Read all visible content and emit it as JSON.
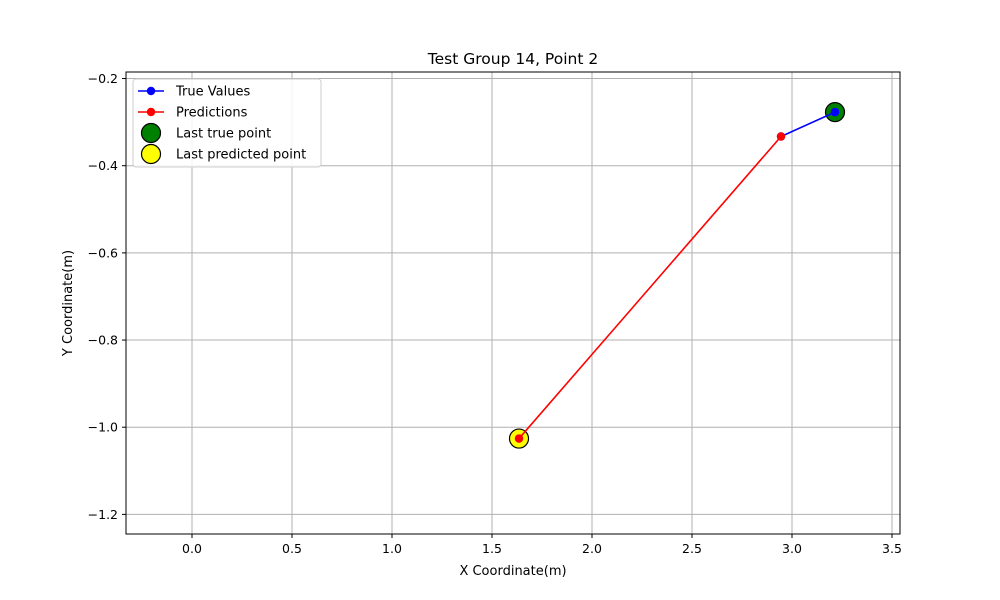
{
  "chart_data": {
    "type": "line",
    "title": "Test Group 14, Point 2",
    "xlabel": "X Coordinate(m)",
    "ylabel": "Y Coordinate(m)",
    "xlim": [
      -0.33,
      3.54
    ],
    "ylim": [
      -1.245,
      -0.185
    ],
    "xticks": [
      0.0,
      0.5,
      1.0,
      1.5,
      2.0,
      2.5,
      3.0,
      3.5
    ],
    "xtick_labels": [
      "0.0",
      "0.5",
      "1.0",
      "1.5",
      "2.0",
      "2.5",
      "3.0",
      "3.5"
    ],
    "yticks": [
      -0.2,
      -0.4,
      -0.6,
      -0.8,
      -1.0,
      -1.2
    ],
    "ytick_labels": [
      "−0.2",
      "−0.4",
      "−0.6",
      "−0.8",
      "−1.0",
      "−1.2"
    ],
    "grid": true,
    "legend_position": "top-left",
    "series": [
      {
        "name": "True Values",
        "color": "#0000ff",
        "marker": "circle",
        "x": [
          2.945,
          3.215
        ],
        "y": [
          -0.333,
          -0.277
        ]
      },
      {
        "name": "Predictions",
        "color": "#ff0000",
        "marker": "circle",
        "x": [
          2.945,
          1.635
        ],
        "y": [
          -0.333,
          -1.026
        ]
      }
    ],
    "highlight_points": [
      {
        "name": "Last true point",
        "color": "#008000",
        "x": 3.215,
        "y": -0.277
      },
      {
        "name": "Last predicted point",
        "color": "#ffff00",
        "x": 1.635,
        "y": -1.026
      }
    ]
  }
}
